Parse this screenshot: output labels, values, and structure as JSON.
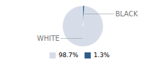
{
  "chart_data": {
    "type": "pie",
    "categories": [
      "WHITE",
      "BLACK"
    ],
    "values": [
      98.7,
      1.3
    ],
    "value_labels": [
      "98.7%",
      "1.3%"
    ],
    "colors": [
      "#d6dde8",
      "#2d5f8a"
    ],
    "legend": "bottom"
  }
}
